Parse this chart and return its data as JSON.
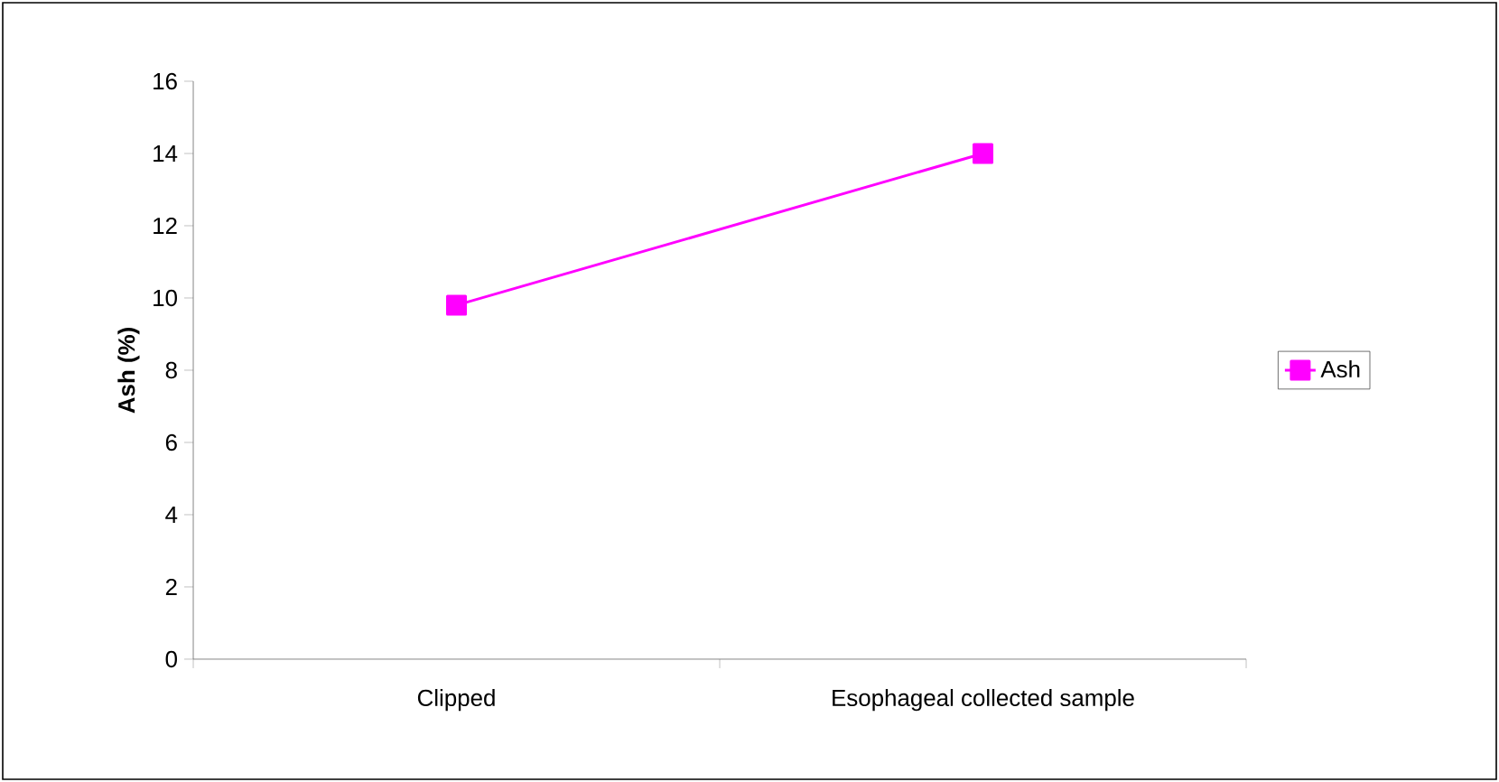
{
  "chart_data": {
    "type": "line",
    "ylabel": "Ash (%)",
    "categories": [
      "Clipped",
      "Esophageal collected sample"
    ],
    "series": [
      {
        "name": "Ash",
        "color": "#ff00ff",
        "values": [
          9.8,
          14.0
        ]
      }
    ],
    "ylim": [
      0,
      16
    ],
    "yticks": [
      0,
      2,
      4,
      6,
      8,
      10,
      12,
      14,
      16
    ],
    "grid": false,
    "legend": "right",
    "marker": "square",
    "line_style": "solid"
  }
}
